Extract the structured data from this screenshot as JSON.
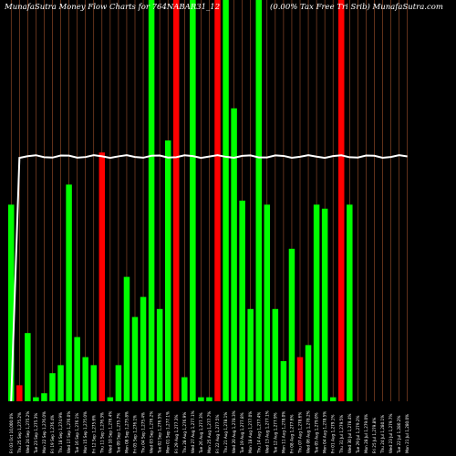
{
  "chart_data": {
    "type": "bar",
    "title": "MunafaSutra  Money  Flow  Charts for 764NABAR31_12",
    "title_right": "(0.00% Tax Free  Tri  Srib) MunafaSutra.com",
    "bar_colors": {
      "up": "#00ff00",
      "down": "#ff0000"
    },
    "line_color": "#ffffff",
    "grid_line_color": "#a0522d",
    "ylim": [
      0,
      100
    ],
    "categories": [
      "Fri 03 Oct 10,000.0%",
      "Thu 25 Sep 1,275.2%",
      "Wed 24 Sep 1,275.2%",
      "Tue 23 Sep 1,275.3%",
      "Mon 22 Sep 1,276.0%",
      "Fri 19 Sep 1,276.4%",
      "Thu 18 Sep 1,274.9%",
      "Wed 17 Sep 1,276.0%",
      "Tue 16 Sep 1,276.1%",
      "Mon 15 Sep 1,275.0%",
      "Fri 12 Sep 1,275.6%",
      "Thu 11 Sep 1,276.3%",
      "Wed 10 Sep 1,276.4%",
      "Tue 09 Sep 1,275.7%",
      "Mon 08 Sep 1,275.8%",
      "Fri 05 Sep 1,276.1%",
      "Thu 04 Sep 1,275.4%",
      "Wed 03 Sep 1,276.2%",
      "Tue 02 Sep 1,276.5%",
      "Mon 01 Sep 1,277.1%",
      "Fri 29 Aug 1,277.3%",
      "Thu 28 Aug 1,276.9%",
      "Wed 27 Aug 1,277.1%",
      "Tue 26 Aug 1,277.3%",
      "Mon 25 Aug 1,277.7%",
      "Fri 22 Aug 1,277.5%",
      "Thu 21 Aug 1,278.1%",
      "Wed 20 Aug 1,278.3%",
      "Tue 19 Aug 1,277.8%",
      "Mon 18 Aug 1,277.0%",
      "Thu 14 Aug 1,277.4%",
      "Wed 13 Aug 1,277.1%",
      "Tue 12 Aug 1,277.9%",
      "Mon 11 Aug 1,278.0%",
      "Fri 08 Aug 1,277.6%",
      "Thu 07 Aug 1,278.6%",
      "Wed 06 Aug 1,278.2%",
      "Tue 05 Aug 1,279.0%",
      "Mon 04 Aug 1,278.5%",
      "Fri 01 Aug 1,279.1%",
      "Thu 31 Jul 1,279.5%",
      "Wed 30 Jul 1,278.4%",
      "Tue 29 Jul 1,279.2%",
      "Mon 28 Jul 1,279.0%",
      "Fri 25 Jul 1,279.8%",
      "Thu 24 Jul 1,280.1%",
      "Wed 23 Jul 1,279.7%",
      "Tue 22 Jul 1,280.2%",
      "Mon 21 Jul 1,280.0%"
    ],
    "series": [
      {
        "values": [
          49,
          4,
          17,
          1,
          2,
          7,
          9,
          54,
          16,
          11,
          9,
          62,
          1,
          9,
          31,
          21,
          26,
          100,
          23,
          65,
          100,
          6,
          100,
          1,
          1,
          100,
          100,
          73,
          50,
          23,
          100,
          49,
          23,
          10,
          38,
          11,
          14,
          49,
          48,
          1,
          100,
          49,
          0,
          0,
          0,
          0,
          0,
          0,
          0
        ],
        "colors": [
          "up",
          "down",
          "up",
          "up",
          "up",
          "up",
          "up",
          "up",
          "up",
          "up",
          "up",
          "down",
          "up",
          "up",
          "up",
          "up",
          "up",
          "up",
          "up",
          "up",
          "down",
          "up",
          "up",
          "up",
          "up",
          "down",
          "up",
          "up",
          "up",
          "up",
          "up",
          "up",
          "up",
          "up",
          "up",
          "down",
          "up",
          "up",
          "up",
          "up",
          "down",
          "up",
          "up",
          "up",
          "up",
          "up",
          "up",
          "up",
          "up"
        ]
      }
    ],
    "line_values": [
      0,
      61,
      61,
      61,
      61,
      61,
      61,
      61,
      61,
      61,
      61,
      61,
      61,
      61,
      61,
      61,
      61,
      61,
      61,
      61,
      61,
      61,
      61,
      61,
      61,
      61,
      61,
      61,
      61,
      61,
      61,
      61,
      61,
      61,
      61,
      61,
      61,
      61,
      61,
      61,
      61,
      61,
      61,
      61,
      61,
      61,
      61,
      61,
      61
    ]
  }
}
